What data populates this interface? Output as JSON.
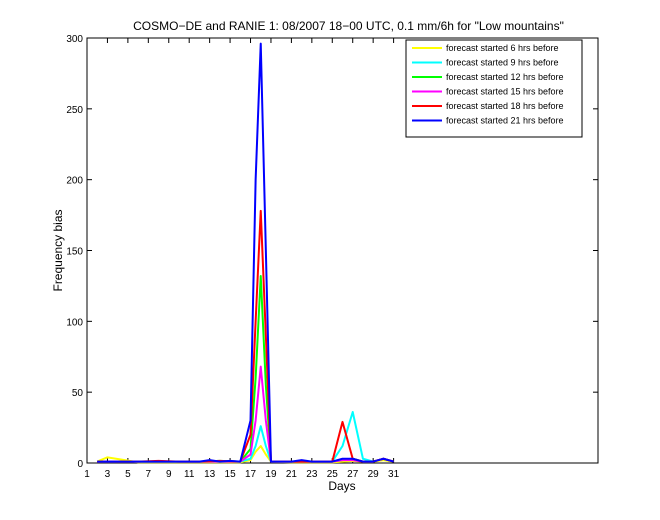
{
  "chart_data": {
    "type": "line",
    "title": "COSMO−DE and RANIE 1: 08/2007 18−00 UTC, 0.1 mm/6h for \"Low mountains\"",
    "xlabel": "Days",
    "ylabel": "Frequency bias",
    "xlim": [
      1,
      51
    ],
    "ylim": [
      0,
      300
    ],
    "xticks": [
      1,
      3,
      5,
      7,
      9,
      11,
      13,
      15,
      17,
      19,
      21,
      23,
      25,
      27,
      29,
      31
    ],
    "yticks": [
      0,
      50,
      100,
      150,
      200,
      250,
      300
    ],
    "grid": false,
    "legend_position": "top-right",
    "series": [
      {
        "name": "forecast started 6 hrs before",
        "color": "#ffff00",
        "points": [
          [
            2,
            1
          ],
          [
            3,
            4
          ],
          [
            6,
            0.5
          ],
          [
            8,
            0.5
          ],
          [
            10,
            0.5
          ],
          [
            12,
            0.5
          ],
          [
            14,
            0.5
          ],
          [
            16,
            0.5
          ],
          [
            17,
            2
          ],
          [
            17.5,
            8
          ],
          [
            18,
            12
          ],
          [
            18.5,
            6
          ],
          [
            19,
            1
          ],
          [
            21,
            0.5
          ],
          [
            23,
            0.5
          ],
          [
            25,
            0.5
          ],
          [
            26,
            1
          ],
          [
            27,
            1.5
          ],
          [
            28,
            1
          ],
          [
            29,
            1
          ],
          [
            30,
            2
          ],
          [
            31,
            1
          ]
        ]
      },
      {
        "name": "forecast started 9 hrs before",
        "color": "#00ffff",
        "points": [
          [
            2,
            1
          ],
          [
            6,
            1
          ],
          [
            8,
            1
          ],
          [
            10,
            1
          ],
          [
            12,
            1
          ],
          [
            14,
            1
          ],
          [
            16,
            1
          ],
          [
            17,
            3
          ],
          [
            17.5,
            12
          ],
          [
            18,
            26
          ],
          [
            18.5,
            12
          ],
          [
            19,
            1
          ],
          [
            21,
            1
          ],
          [
            23,
            1
          ],
          [
            25,
            1
          ],
          [
            26,
            12
          ],
          [
            27,
            36
          ],
          [
            28,
            3
          ],
          [
            29,
            1
          ],
          [
            30,
            3
          ],
          [
            31,
            1
          ]
        ]
      },
      {
        "name": "forecast started 12 hrs before",
        "color": "#00ff00",
        "points": [
          [
            2,
            1
          ],
          [
            6,
            1
          ],
          [
            8,
            1
          ],
          [
            10,
            1
          ],
          [
            12,
            1
          ],
          [
            14,
            1.5
          ],
          [
            16,
            1
          ],
          [
            17,
            10
          ],
          [
            17.5,
            60
          ],
          [
            18,
            132
          ],
          [
            18.5,
            55
          ],
          [
            19,
            1
          ],
          [
            21,
            1
          ],
          [
            23,
            1
          ],
          [
            25,
            1
          ],
          [
            26,
            2
          ],
          [
            27,
            3
          ],
          [
            28,
            1
          ],
          [
            29,
            1
          ],
          [
            30,
            3
          ],
          [
            31,
            1
          ]
        ]
      },
      {
        "name": "forecast started 15 hrs before",
        "color": "#ff00ff",
        "points": [
          [
            2,
            1
          ],
          [
            6,
            1
          ],
          [
            8,
            1
          ],
          [
            10,
            1
          ],
          [
            12,
            1
          ],
          [
            14,
            1
          ],
          [
            16,
            1
          ],
          [
            17,
            6
          ],
          [
            17.5,
            30
          ],
          [
            18,
            68
          ],
          [
            18.5,
            30
          ],
          [
            19,
            1
          ],
          [
            21,
            1
          ],
          [
            23,
            1
          ],
          [
            25,
            1
          ],
          [
            26,
            2
          ],
          [
            27,
            2
          ],
          [
            28,
            1
          ],
          [
            29,
            1
          ],
          [
            30,
            3
          ],
          [
            31,
            1
          ]
        ]
      },
      {
        "name": "forecast started 18 hrs before",
        "color": "#ff0000",
        "points": [
          [
            2,
            1
          ],
          [
            6,
            1
          ],
          [
            8,
            1.5
          ],
          [
            10,
            1
          ],
          [
            12,
            1
          ],
          [
            14,
            1.5
          ],
          [
            16,
            1
          ],
          [
            17,
            20
          ],
          [
            17.5,
            100
          ],
          [
            18,
            178
          ],
          [
            18.5,
            90
          ],
          [
            19,
            1
          ],
          [
            21,
            1
          ],
          [
            23,
            1
          ],
          [
            24,
            1
          ],
          [
            25,
            1
          ],
          [
            26,
            29
          ],
          [
            27,
            3
          ],
          [
            28,
            1
          ],
          [
            29,
            1
          ],
          [
            30,
            3
          ],
          [
            31,
            1
          ]
        ]
      },
      {
        "name": "forecast started 21 hrs before",
        "color": "#0000ff",
        "points": [
          [
            2,
            1
          ],
          [
            6,
            1
          ],
          [
            8,
            1
          ],
          [
            10,
            1
          ],
          [
            12,
            1
          ],
          [
            13,
            2
          ],
          [
            14,
            1
          ],
          [
            15,
            1.5
          ],
          [
            16,
            1
          ],
          [
            17,
            30
          ],
          [
            17.5,
            200
          ],
          [
            18,
            296
          ],
          [
            18.5,
            150
          ],
          [
            19,
            1
          ],
          [
            21,
            1
          ],
          [
            22,
            2
          ],
          [
            23,
            1
          ],
          [
            25,
            1
          ],
          [
            26,
            3
          ],
          [
            27,
            3
          ],
          [
            28,
            1
          ],
          [
            29,
            1
          ],
          [
            30,
            3
          ],
          [
            31,
            1
          ]
        ]
      }
    ]
  }
}
